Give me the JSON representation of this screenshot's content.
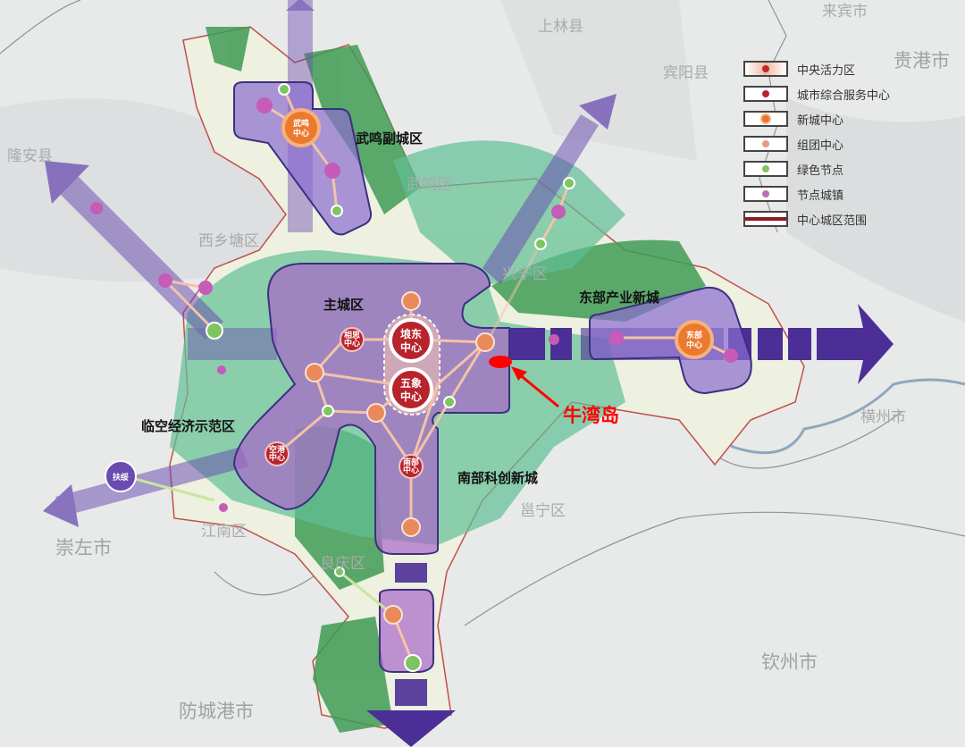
{
  "places": {
    "longan": "隆安县",
    "xixiangtang": "西乡塘区",
    "wuming_district": "武鸣区",
    "shanglin": "上林县",
    "binyang": "宾阳县",
    "laibin": "来宾市",
    "guigang": "贵港市",
    "xingning": "兴宁区",
    "qinzhou_city": "钦州市",
    "yongning": "邕宁区",
    "jiangnan": "江南区",
    "liangqing": "良庆区",
    "chongzuo": "崇左市",
    "fangchenggang": "防城港市",
    "hengzhou": "横州市"
  },
  "zones": {
    "wuming": "武鸣副城区",
    "main_city": "主城区",
    "east": "东部产业新城",
    "airport": "临空经济示范区",
    "south": "南部科创新城"
  },
  "nodes": {
    "langdong": [
      "埌东",
      "中心"
    ],
    "wuxiang": [
      "五象",
      "中心"
    ],
    "xiangsi": [
      "相思",
      "中心"
    ],
    "konggang": [
      "空港",
      "中心"
    ],
    "nanbu": [
      "南部",
      "中心"
    ],
    "wuming": [
      "武鸣",
      "中心"
    ],
    "dongbu": [
      "东部",
      "中心"
    ],
    "fusui": "扶绥"
  },
  "annotation": {
    "label": "牛湾岛",
    "color": "#ff0000"
  },
  "legend": {
    "items": [
      {
        "label": "中央活力区",
        "color": "#c0282d"
      },
      {
        "label": "城市综合服务中心",
        "color": "#b8232c"
      },
      {
        "label": "新城中心",
        "color": "#e8732e"
      },
      {
        "label": "组团中心",
        "color": "#e59a84"
      },
      {
        "label": "绿色节点",
        "color": "#7fc463"
      },
      {
        "label": "节点城镇",
        "color": "#b96fb6"
      },
      {
        "label": "中心城区范围",
        "color": "#8b1c25"
      }
    ]
  },
  "colors": {
    "corridor": "#5b3fa0",
    "green_zone": "#5fbf96",
    "purple_zone": "#b26bc8",
    "node_red": "#b8232c",
    "node_orange": "#ea8a5a"
  }
}
